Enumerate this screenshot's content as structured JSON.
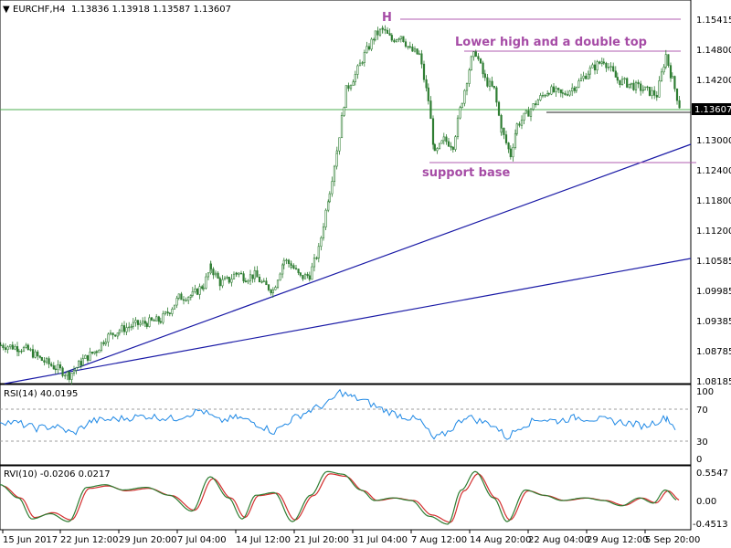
{
  "header": {
    "symbol": "EURCHF,H4",
    "ohlc": "1.13836 1.13918 1.13587 1.13607"
  },
  "price_axis": {
    "ticks": [
      "1.15415",
      "1.14800",
      "1.14200",
      "1.13000",
      "1.12400",
      "1.11800",
      "1.11200",
      "1.10585",
      "1.09985",
      "1.09385",
      "1.08785",
      "1.08185"
    ],
    "current": "1.13607"
  },
  "annotations": {
    "head": "H",
    "lower_high": "Lower high and a double top",
    "support": "support base"
  },
  "rsi": {
    "label": "RSI(14) 40.0195",
    "levels": [
      "100",
      "70",
      "30",
      "0"
    ]
  },
  "rvi": {
    "label": "RVI(10) -0.0206 0.0217",
    "levels": [
      "0.5547",
      "0.00",
      "-0.4513"
    ]
  },
  "time_axis": [
    "15 Jun 2017",
    "22 Jun 12:00",
    "29 Jun 20:00",
    "7 Jul 04:00",
    "14 Jul 12:00",
    "21 Jul 20:00",
    "31 Jul 04:00",
    "7 Aug 12:00",
    "14 Aug 20:00",
    "22 Aug 04:00",
    "29 Aug 12:00",
    "5 Sep 20:00"
  ],
  "colors": {
    "candle": "#2e7d32",
    "trendline": "#1a1aa6",
    "resistance": "#b05cb0",
    "price_line": "#4caf50",
    "rsi": "#1e88e5",
    "rvi_main": "#2e7d32",
    "rvi_signal": "#d32f2f",
    "level_dash": "#9e9e9e"
  },
  "chart_data": {
    "type": "line",
    "close_path": [
      [
        0,
        1.089
      ],
      [
        20,
        1.0885
      ],
      [
        30,
        1.088
      ],
      [
        45,
        1.086
      ],
      [
        60,
        1.0845
      ],
      [
        75,
        1.083
      ],
      [
        90,
        1.086
      ],
      [
        105,
        1.088
      ],
      [
        115,
        1.0905
      ],
      [
        130,
        1.092
      ],
      [
        145,
        1.093
      ],
      [
        160,
        1.0935
      ],
      [
        175,
        1.094
      ],
      [
        185,
        1.096
      ],
      [
        195,
        1.0985
      ],
      [
        210,
        1.099
      ],
      [
        222,
        1.101
      ],
      [
        230,
        1.1045
      ],
      [
        240,
        1.1015
      ],
      [
        250,
        1.102
      ],
      [
        258,
        1.1035
      ],
      [
        268,
        1.1025
      ],
      [
        278,
        1.103
      ],
      [
        288,
        1.101
      ],
      [
        298,
        1.1
      ],
      [
        310,
        1.106
      ],
      [
        318,
        1.105
      ],
      [
        328,
        1.1025
      ],
      [
        338,
        1.103
      ],
      [
        348,
        1.108
      ],
      [
        360,
        1.12
      ],
      [
        368,
        1.128
      ],
      [
        378,
        1.14
      ],
      [
        388,
        1.143
      ],
      [
        398,
        1.147
      ],
      [
        410,
        1.151
      ],
      [
        418,
        1.152
      ],
      [
        428,
        1.15
      ],
      [
        438,
        1.151
      ],
      [
        448,
        1.148
      ],
      [
        458,
        1.147
      ],
      [
        468,
        1.138
      ],
      [
        475,
        1.127
      ],
      [
        485,
        1.13
      ],
      [
        495,
        1.129
      ],
      [
        505,
        1.138
      ],
      [
        515,
        1.146
      ],
      [
        520,
        1.1475
      ],
      [
        530,
        1.142
      ],
      [
        540,
        1.14
      ],
      [
        548,
        1.132
      ],
      [
        558,
        1.127
      ],
      [
        565,
        1.133
      ],
      [
        575,
        1.135
      ],
      [
        588,
        1.138
      ],
      [
        600,
        1.14
      ],
      [
        615,
        1.139
      ],
      [
        630,
        1.141
      ],
      [
        645,
        1.144
      ],
      [
        660,
        1.146
      ],
      [
        675,
        1.142
      ],
      [
        690,
        1.141
      ],
      [
        705,
        1.14
      ],
      [
        718,
        1.139
      ],
      [
        728,
        1.147
      ],
      [
        735,
        1.142
      ],
      [
        744,
        1.1361
      ]
    ],
    "rsi_values": [
      [
        0,
        55
      ],
      [
        20,
        52
      ],
      [
        40,
        45
      ],
      [
        60,
        48
      ],
      [
        80,
        38
      ],
      [
        100,
        55
      ],
      [
        130,
        58
      ],
      [
        160,
        62
      ],
      [
        190,
        58
      ],
      [
        220,
        70
      ],
      [
        240,
        55
      ],
      [
        260,
        60
      ],
      [
        280,
        52
      ],
      [
        300,
        40
      ],
      [
        320,
        58
      ],
      [
        340,
        70
      ],
      [
        360,
        80
      ],
      [
        372,
        95
      ],
      [
        385,
        88
      ],
      [
        400,
        82
      ],
      [
        420,
        70
      ],
      [
        440,
        62
      ],
      [
        460,
        55
      ],
      [
        475,
        30
      ],
      [
        490,
        40
      ],
      [
        510,
        62
      ],
      [
        525,
        55
      ],
      [
        540,
        50
      ],
      [
        555,
        32
      ],
      [
        570,
        48
      ],
      [
        590,
        58
      ],
      [
        610,
        55
      ],
      [
        630,
        60
      ],
      [
        650,
        58
      ],
      [
        670,
        55
      ],
      [
        690,
        52
      ],
      [
        705,
        48
      ],
      [
        720,
        55
      ],
      [
        730,
        60
      ],
      [
        742,
        40
      ]
    ],
    "rvi_values": [
      [
        0,
        0.3
      ],
      [
        20,
        0.05
      ],
      [
        35,
        -0.35
      ],
      [
        55,
        -0.25
      ],
      [
        75,
        -0.4
      ],
      [
        95,
        0.25
      ],
      [
        115,
        0.3
      ],
      [
        135,
        0.2
      ],
      [
        160,
        0.25
      ],
      [
        185,
        0.1
      ],
      [
        210,
        -0.2
      ],
      [
        230,
        0.45
      ],
      [
        250,
        0.05
      ],
      [
        265,
        -0.35
      ],
      [
        280,
        0.1
      ],
      [
        300,
        0.15
      ],
      [
        320,
        -0.4
      ],
      [
        340,
        0.1
      ],
      [
        358,
        0.55
      ],
      [
        375,
        0.5
      ],
      [
        395,
        0.2
      ],
      [
        410,
        0.0
      ],
      [
        430,
        0.05
      ],
      [
        450,
        0.0
      ],
      [
        470,
        -0.3
      ],
      [
        490,
        -0.45
      ],
      [
        505,
        0.2
      ],
      [
        520,
        0.55
      ],
      [
        540,
        0.05
      ],
      [
        555,
        -0.4
      ],
      [
        575,
        0.2
      ],
      [
        595,
        0.1
      ],
      [
        615,
        0.0
      ],
      [
        640,
        0.05
      ],
      [
        660,
        0.0
      ],
      [
        680,
        -0.1
      ],
      [
        700,
        0.05
      ],
      [
        715,
        -0.05
      ],
      [
        728,
        0.2
      ],
      [
        742,
        0.0
      ]
    ]
  }
}
